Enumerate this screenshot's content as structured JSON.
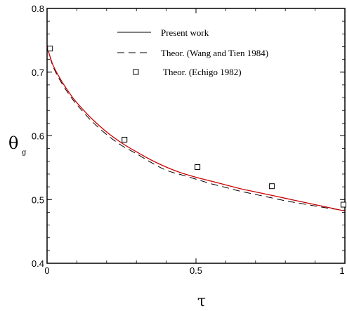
{
  "chart_data": {
    "type": "line",
    "xlabel": "τ",
    "ylabel": "θ",
    "ylabel_subscript": "g",
    "xlim": [
      0,
      1
    ],
    "ylim": [
      0.4,
      0.8
    ],
    "xticks": [
      0,
      0.5,
      1
    ],
    "xtick_labels": [
      "0",
      "0.5",
      "1"
    ],
    "yticks": [
      0.4,
      0.5,
      0.6,
      0.7,
      0.8
    ],
    "ytick_labels": [
      "0.4",
      "0.5",
      "0.6",
      "0.7",
      "0.8"
    ],
    "grid": false,
    "legend_position": "top-center",
    "series": [
      {
        "name": "Present work",
        "style": "solid",
        "color": "#cc0000",
        "x": [
          0,
          0.02,
          0.05,
          0.08,
          0.1,
          0.15,
          0.2,
          0.25,
          0.3,
          0.35,
          0.4,
          0.45,
          0.5,
          0.55,
          0.6,
          0.65,
          0.7,
          0.75,
          0.8,
          0.85,
          0.9,
          0.95,
          1.0
        ],
        "y": [
          0.74,
          0.711,
          0.685,
          0.664,
          0.652,
          0.627,
          0.606,
          0.589,
          0.575,
          0.562,
          0.551,
          0.542,
          0.535,
          0.529,
          0.523,
          0.517,
          0.512,
          0.507,
          0.502,
          0.497,
          0.492,
          0.487,
          0.482
        ]
      },
      {
        "name": "Theor. (Wang and Tien 1984)",
        "style": "dashed",
        "color": "#000000",
        "x": [
          0,
          0.02,
          0.05,
          0.08,
          0.1,
          0.15,
          0.2,
          0.25,
          0.3,
          0.35,
          0.4,
          0.45,
          0.5,
          0.55,
          0.6,
          0.65,
          0.7,
          0.75,
          0.8,
          0.85,
          0.9,
          0.95,
          1.0
        ],
        "y": [
          0.74,
          0.709,
          0.682,
          0.661,
          0.649,
          0.623,
          0.602,
          0.585,
          0.572,
          0.558,
          0.546,
          0.539,
          0.532,
          0.525,
          0.519,
          0.513,
          0.508,
          0.503,
          0.498,
          0.494,
          0.49,
          0.486,
          0.483
        ]
      },
      {
        "name": "Theor. (Echigo 1982)",
        "style": "markers",
        "marker": "square",
        "color": "#000000",
        "x": [
          0.01,
          0.26,
          0.505,
          0.755,
          0.995
        ],
        "y": [
          0.737,
          0.594,
          0.551,
          0.521,
          0.492
        ]
      }
    ]
  }
}
